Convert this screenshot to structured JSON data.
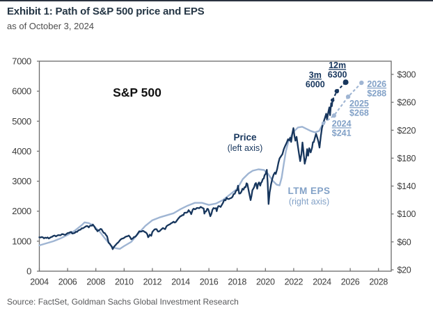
{
  "header": {
    "title": "Exhibit 1: Path of S&P 500 price and EPS",
    "subtitle": "as of October 3, 2024"
  },
  "footer": {
    "source": "Source: FactSet, Goldman Sachs Global Investment Research"
  },
  "colors": {
    "price_navy": "#17365d",
    "eps_blue": "#9fb5d3",
    "eps_label_blue": "#82a1c7",
    "axis_text": "#3b3b3b",
    "frame": "#6a6a6a",
    "title_text": "#253645",
    "subtitle_text": "#4d4d4d",
    "source_text": "#57585a",
    "chart_title_text": "#111111",
    "top_rule": "#2b3340"
  },
  "chart_data": {
    "type": "line",
    "inside_title": "S&P 500",
    "x_axis": {
      "tick_years": [
        2004,
        2006,
        2008,
        2010,
        2012,
        2014,
        2016,
        2018,
        2020,
        2022,
        2024,
        2026,
        2028
      ],
      "range": [
        2004,
        2028.9
      ]
    },
    "left_axis": {
      "title": "Price",
      "ticks": [
        0,
        1000,
        2000,
        3000,
        4000,
        5000,
        6000,
        7000
      ],
      "range": [
        0,
        7000
      ]
    },
    "right_axis": {
      "title": "LTM EPS",
      "ticks": [
        {
          "value": 20,
          "label": "$20"
        },
        {
          "value": 60,
          "label": "$60"
        },
        {
          "value": 100,
          "label": "$100"
        },
        {
          "value": 140,
          "label": "$140"
        },
        {
          "value": 180,
          "label": "$180"
        },
        {
          "value": 220,
          "label": "$220"
        },
        {
          "value": 260,
          "label": "$260"
        },
        {
          "value": 300,
          "label": "$300"
        }
      ],
      "range": [
        20,
        302
      ]
    },
    "series": [
      {
        "name": "Price",
        "axis": "left",
        "label": "Price",
        "sublabel": "(left axis)",
        "jagged": true,
        "points": [
          [
            2004,
            1130
          ],
          [
            2004.17,
            1140
          ],
          [
            2004.33,
            1095
          ],
          [
            2004.5,
            1105
          ],
          [
            2004.67,
            1090
          ],
          [
            2004.83,
            1135
          ],
          [
            2005,
            1180
          ],
          [
            2005.17,
            1160
          ],
          [
            2005.33,
            1200
          ],
          [
            2005.5,
            1195
          ],
          [
            2005.67,
            1235
          ],
          [
            2005.83,
            1210
          ],
          [
            2006,
            1270
          ],
          [
            2006.17,
            1295
          ],
          [
            2006.33,
            1255
          ],
          [
            2006.5,
            1275
          ],
          [
            2006.67,
            1310
          ],
          [
            2006.83,
            1375
          ],
          [
            2007,
            1430
          ],
          [
            2007.17,
            1455
          ],
          [
            2007.33,
            1505
          ],
          [
            2007.5,
            1460
          ],
          [
            2007.67,
            1520
          ],
          [
            2007.79,
            1555
          ],
          [
            2007.9,
            1480
          ],
          [
            2008,
            1395
          ],
          [
            2008.12,
            1330
          ],
          [
            2008.25,
            1370
          ],
          [
            2008.4,
            1400
          ],
          [
            2008.55,
            1280
          ],
          [
            2008.7,
            1220
          ],
          [
            2008.8,
            1160
          ],
          [
            2008.9,
            950
          ],
          [
            2009.05,
            870
          ],
          [
            2009.19,
            735
          ],
          [
            2009.33,
            840
          ],
          [
            2009.5,
            930
          ],
          [
            2009.67,
            1010
          ],
          [
            2009.83,
            1080
          ],
          [
            2010,
            1110
          ],
          [
            2010.17,
            1160
          ],
          [
            2010.33,
            1190
          ],
          [
            2010.5,
            1065
          ],
          [
            2010.62,
            1095
          ],
          [
            2010.75,
            1140
          ],
          [
            2010.9,
            1210
          ],
          [
            2011,
            1280
          ],
          [
            2011.15,
            1320
          ],
          [
            2011.3,
            1340
          ],
          [
            2011.45,
            1310
          ],
          [
            2011.58,
            1270
          ],
          [
            2011.7,
            1130
          ],
          [
            2011.82,
            1220
          ],
          [
            2011.92,
            1180
          ],
          [
            2012,
            1310
          ],
          [
            2012.15,
            1390
          ],
          [
            2012.3,
            1400
          ],
          [
            2012.42,
            1320
          ],
          [
            2012.58,
            1370
          ],
          [
            2012.75,
            1440
          ],
          [
            2012.9,
            1400
          ],
          [
            2013,
            1500
          ],
          [
            2013.17,
            1550
          ],
          [
            2013.33,
            1600
          ],
          [
            2013.5,
            1650
          ],
          [
            2013.58,
            1620
          ],
          [
            2013.75,
            1700
          ],
          [
            2013.92,
            1800
          ],
          [
            2014.05,
            1840
          ],
          [
            2014.2,
            1870
          ],
          [
            2014.33,
            1950
          ],
          [
            2014.5,
            1970
          ],
          [
            2014.62,
            2000
          ],
          [
            2014.75,
            1900
          ],
          [
            2014.85,
            2050
          ],
          [
            2015,
            2060
          ],
          [
            2015.15,
            2110
          ],
          [
            2015.33,
            2100
          ],
          [
            2015.5,
            2120
          ],
          [
            2015.63,
            2090
          ],
          [
            2015.68,
            1920
          ],
          [
            2015.8,
            1990
          ],
          [
            2015.88,
            2080
          ],
          [
            2016,
            1995
          ],
          [
            2016.1,
            1830
          ],
          [
            2016.25,
            2050
          ],
          [
            2016.4,
            2090
          ],
          [
            2016.5,
            2100
          ],
          [
            2016.55,
            2000
          ],
          [
            2016.67,
            2170
          ],
          [
            2016.83,
            2140
          ],
          [
            2017,
            2280
          ],
          [
            2017.17,
            2360
          ],
          [
            2017.33,
            2410
          ],
          [
            2017.5,
            2430
          ],
          [
            2017.67,
            2480
          ],
          [
            2017.83,
            2580
          ],
          [
            2018,
            2700
          ],
          [
            2018.06,
            2850
          ],
          [
            2018.14,
            2590
          ],
          [
            2018.3,
            2650
          ],
          [
            2018.45,
            2720
          ],
          [
            2018.6,
            2800
          ],
          [
            2018.72,
            2910
          ],
          [
            2018.83,
            2650
          ],
          [
            2018.95,
            2370
          ],
          [
            2019.08,
            2700
          ],
          [
            2019.2,
            2800
          ],
          [
            2019.33,
            2940
          ],
          [
            2019.42,
            2750
          ],
          [
            2019.55,
            2960
          ],
          [
            2019.63,
            2850
          ],
          [
            2019.75,
            2980
          ],
          [
            2019.88,
            3090
          ],
          [
            2020,
            3230
          ],
          [
            2020.1,
            3380
          ],
          [
            2020.16,
            2950
          ],
          [
            2020.22,
            2240
          ],
          [
            2020.3,
            2630
          ],
          [
            2020.4,
            2900
          ],
          [
            2020.5,
            3100
          ],
          [
            2020.58,
            3220
          ],
          [
            2020.67,
            3290
          ],
          [
            2020.73,
            3240
          ],
          [
            2020.83,
            3400
          ],
          [
            2020.92,
            3620
          ],
          [
            2021,
            3760
          ],
          [
            2021.1,
            3830
          ],
          [
            2021.2,
            3900
          ],
          [
            2021.3,
            4070
          ],
          [
            2021.4,
            4180
          ],
          [
            2021.5,
            4280
          ],
          [
            2021.6,
            4400
          ],
          [
            2021.68,
            4360
          ],
          [
            2021.75,
            4450
          ],
          [
            2021.82,
            4310
          ],
          [
            2021.9,
            4590
          ],
          [
            2021.98,
            4770
          ],
          [
            2022.05,
            4520
          ],
          [
            2022.12,
            4350
          ],
          [
            2022.2,
            4480
          ],
          [
            2022.3,
            4150
          ],
          [
            2022.38,
            3900
          ],
          [
            2022.46,
            3670
          ],
          [
            2022.55,
            3920
          ],
          [
            2022.62,
            4290
          ],
          [
            2022.7,
            3950
          ],
          [
            2022.78,
            3580
          ],
          [
            2022.88,
            3780
          ],
          [
            2022.95,
            4070
          ],
          [
            2023.02,
            3850
          ],
          [
            2023.1,
            4100
          ],
          [
            2023.2,
            3960
          ],
          [
            2023.3,
            4120
          ],
          [
            2023.42,
            4300
          ],
          [
            2023.5,
            4450
          ],
          [
            2023.58,
            4580
          ],
          [
            2023.67,
            4450
          ],
          [
            2023.76,
            4300
          ],
          [
            2023.83,
            4120
          ],
          [
            2023.92,
            4510
          ],
          [
            2024,
            4770
          ],
          [
            2024.1,
            4950
          ],
          [
            2024.2,
            5100
          ],
          [
            2024.3,
            5250
          ],
          [
            2024.36,
            5050
          ],
          [
            2024.45,
            5300
          ],
          [
            2024.52,
            5460
          ],
          [
            2024.57,
            5200
          ],
          [
            2024.65,
            5600
          ],
          [
            2024.7,
            5500
          ],
          [
            2024.75,
            5700
          ]
        ]
      },
      {
        "name": "LTM EPS",
        "axis": "right",
        "label": "LTM EPS",
        "sublabel": "(right axis)",
        "jagged": false,
        "points": [
          [
            2004,
            55
          ],
          [
            2004.5,
            58
          ],
          [
            2005,
            61
          ],
          [
            2005.5,
            65
          ],
          [
            2006,
            70
          ],
          [
            2006.5,
            76
          ],
          [
            2007,
            84
          ],
          [
            2007.2,
            88
          ],
          [
            2007.5,
            87
          ],
          [
            2007.8,
            84
          ],
          [
            2008,
            80
          ],
          [
            2008.3,
            74
          ],
          [
            2008.6,
            66
          ],
          [
            2008.85,
            60
          ],
          [
            2009.1,
            54
          ],
          [
            2009.4,
            51
          ],
          [
            2009.7,
            50
          ],
          [
            2010,
            54
          ],
          [
            2010.5,
            60
          ],
          [
            2011,
            72
          ],
          [
            2011.5,
            83
          ],
          [
            2012,
            91
          ],
          [
            2012.5,
            95
          ],
          [
            2013,
            98
          ],
          [
            2013.5,
            101
          ],
          [
            2014,
            107
          ],
          [
            2014.5,
            112
          ],
          [
            2015,
            116
          ],
          [
            2015.5,
            116
          ],
          [
            2016,
            113
          ],
          [
            2016.5,
            115
          ],
          [
            2017,
            120
          ],
          [
            2017.5,
            128
          ],
          [
            2018,
            136
          ],
          [
            2018.4,
            150
          ],
          [
            2018.8,
            158
          ],
          [
            2019.1,
            162
          ],
          [
            2019.5,
            164
          ],
          [
            2019.9,
            163
          ],
          [
            2020.2,
            157
          ],
          [
            2020.5,
            148
          ],
          [
            2020.8,
            142
          ],
          [
            2021,
            141
          ],
          [
            2021.15,
            152
          ],
          [
            2021.3,
            172
          ],
          [
            2021.45,
            190
          ],
          [
            2021.6,
            202
          ],
          [
            2021.8,
            211
          ],
          [
            2022,
            218
          ],
          [
            2022.3,
            224
          ],
          [
            2022.6,
            225
          ],
          [
            2022.9,
            222
          ],
          [
            2023.2,
            219
          ],
          [
            2023.5,
            217
          ],
          [
            2023.8,
            219
          ],
          [
            2024.1,
            230
          ]
        ]
      }
    ],
    "forecasts": [
      {
        "series": "Price",
        "points": [
          {
            "year": 2024.75,
            "value": 5700,
            "labels": []
          },
          {
            "year": 2025.05,
            "value": 6000,
            "labels": [
              "3m",
              "6000"
            ]
          },
          {
            "year": 2025.68,
            "value": 6300,
            "labels": [
              "12m",
              "6300"
            ]
          }
        ]
      },
      {
        "series": "LTM EPS",
        "points": [
          {
            "year": 2024.1,
            "value": 230,
            "labels": []
          },
          {
            "year": 2024.85,
            "value": 241,
            "labels": [
              "2024",
              "$241"
            ]
          },
          {
            "year": 2025.85,
            "value": 268,
            "labels": [
              "2025",
              "$268"
            ]
          },
          {
            "year": 2026.8,
            "value": 288,
            "labels": [
              "2026",
              "$288"
            ]
          }
        ]
      }
    ]
  }
}
